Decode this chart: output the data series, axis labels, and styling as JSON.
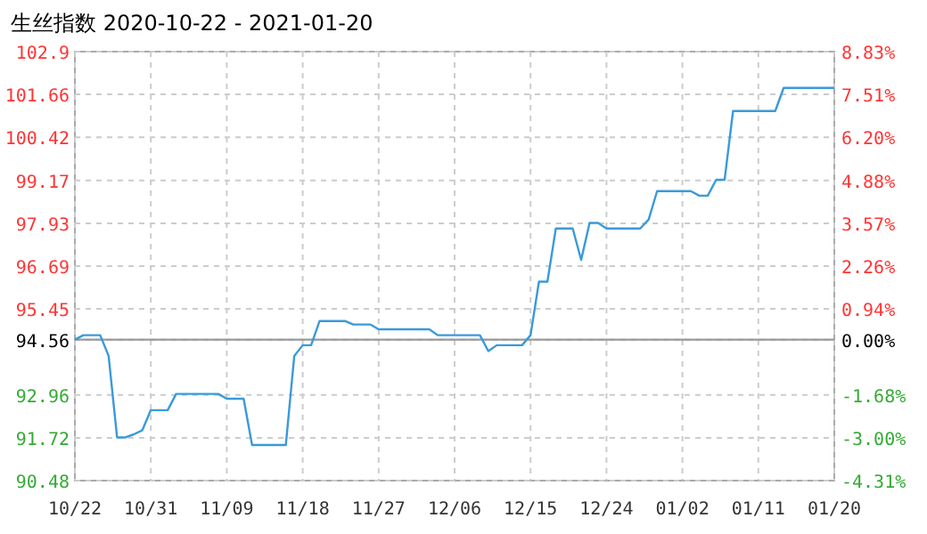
{
  "chart_data": {
    "type": "line",
    "title": "生丝指数 2020-10-22 - 2021-01-20",
    "x": [
      "2020-10-22",
      "2020-10-23",
      "2020-10-25",
      "2020-10-26",
      "2020-10-27",
      "2020-10-28",
      "2020-10-29",
      "2020-10-30",
      "2020-10-31",
      "2020-11-02",
      "2020-11-03",
      "2020-11-08",
      "2020-11-09",
      "2020-11-11",
      "2020-11-12",
      "2020-11-16",
      "2020-11-17",
      "2020-11-18",
      "2020-11-19",
      "2020-11-20",
      "2020-11-23",
      "2020-11-24",
      "2020-11-26",
      "2020-11-27",
      "2020-12-03",
      "2020-12-04",
      "2020-12-09",
      "2020-12-10",
      "2020-12-11",
      "2020-12-14",
      "2020-12-15",
      "2020-12-16",
      "2020-12-17",
      "2020-12-18",
      "2020-12-20",
      "2020-12-21",
      "2020-12-22",
      "2020-12-23",
      "2020-12-24",
      "2020-12-28",
      "2020-12-29",
      "2020-12-30",
      "2021-01-03",
      "2021-01-04",
      "2021-01-05",
      "2021-01-06",
      "2021-01-07",
      "2021-01-08",
      "2021-01-13",
      "2021-01-14",
      "2021-01-20"
    ],
    "series": [
      {
        "color": "#3a9ad9",
        "values": [
          94.56,
          94.69,
          94.69,
          94.09,
          91.73,
          91.73,
          91.82,
          91.94,
          92.52,
          92.52,
          92.99,
          92.99,
          92.85,
          92.85,
          91.51,
          91.51,
          94.09,
          94.4,
          94.4,
          95.1,
          95.1,
          95.0,
          95.0,
          94.86,
          94.86,
          94.69,
          94.69,
          94.23,
          94.4,
          94.4,
          94.69,
          96.24,
          96.24,
          97.78,
          97.78,
          96.87,
          97.94,
          97.94,
          97.78,
          97.78,
          98.04,
          98.86,
          98.86,
          98.73,
          98.73,
          99.19,
          99.19,
          101.18,
          101.18,
          101.85,
          101.85
        ]
      }
    ],
    "xlim": [
      "2020-10-22",
      "2021-01-20"
    ],
    "xticks": [
      {
        "value": "2020-10-22",
        "label": "10/22"
      },
      {
        "value": "2020-10-31",
        "label": "10/31"
      },
      {
        "value": "2020-11-09",
        "label": "11/09"
      },
      {
        "value": "2020-11-18",
        "label": "11/18"
      },
      {
        "value": "2020-11-27",
        "label": "11/27"
      },
      {
        "value": "2020-12-06",
        "label": "12/06"
      },
      {
        "value": "2020-12-15",
        "label": "12/15"
      },
      {
        "value": "2020-12-24",
        "label": "12/24"
      },
      {
        "value": "2021-01-02",
        "label": "01/02"
      },
      {
        "value": "2021-01-11",
        "label": "01/11"
      },
      {
        "value": "2021-01-20",
        "label": "01/20"
      }
    ],
    "ylim": [
      90.48,
      102.9
    ],
    "yticks": [
      90.48,
      91.72,
      92.96,
      94.56,
      95.45,
      96.69,
      97.93,
      99.17,
      100.42,
      101.66,
      102.9
    ],
    "y2lim": [
      -4.31,
      8.83
    ],
    "y2ticks": [
      {
        "value": -4.31,
        "label": "-4.31%"
      },
      {
        "value": -3.0,
        "label": "-3.00%"
      },
      {
        "value": -1.68,
        "label": "-1.68%"
      },
      {
        "value": 0,
        "label": "0.00%"
      },
      {
        "value": 0.94,
        "label": "0.94%"
      },
      {
        "value": 2.26,
        "label": "2.26%"
      },
      {
        "value": 3.57,
        "label": "3.57%"
      },
      {
        "value": 4.88,
        "label": "4.88%"
      },
      {
        "value": 6.2,
        "label": "6.20%"
      },
      {
        "value": 7.51,
        "label": "7.51%"
      },
      {
        "value": 8.83,
        "label": "8.83%"
      }
    ],
    "ref_lines": [
      {
        "axis": "y",
        "value": 94.56,
        "color": "#999999"
      }
    ],
    "grid": true,
    "marker": "none",
    "line_style": "solid"
  }
}
